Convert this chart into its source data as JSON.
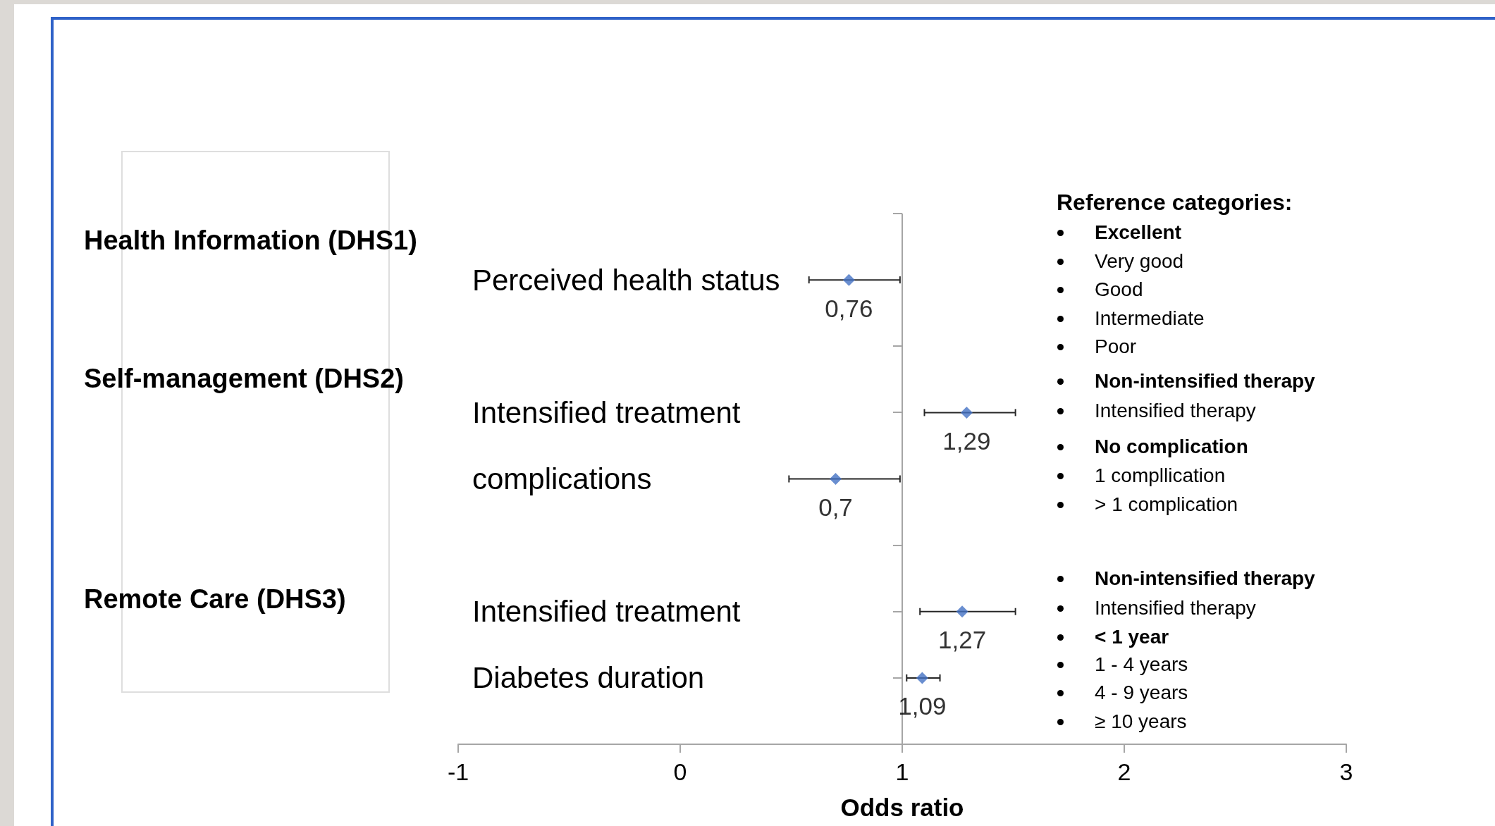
{
  "chart_data": {
    "type": "scatter",
    "orientation": "horizontal",
    "categories": [
      null,
      "Perceived health status",
      null,
      "Intensified treatment",
      "complications",
      null,
      "Intensified treatment",
      "Diabetes duration",
      null
    ],
    "values": [
      null,
      0.76,
      null,
      1.29,
      0.7,
      null,
      1.27,
      1.09,
      null
    ],
    "errors": [
      null,
      [
        0.58,
        0.99
      ],
      null,
      [
        1.1,
        1.51
      ],
      [
        0.49,
        0.99
      ],
      null,
      [
        1.08,
        1.51
      ],
      [
        1.02,
        1.17
      ],
      null
    ],
    "value_labels": [
      null,
      "0,76",
      null,
      "1,29",
      "0,7",
      null,
      "1,27",
      "1,09",
      null
    ],
    "color": "#4472c4",
    "marker": "diamond",
    "xlim": [
      -1,
      3
    ],
    "xticks": [
      -1,
      0,
      1,
      2,
      3
    ],
    "xlabel": "Odds ratio",
    "grid": false,
    "ref_lines": [
      {
        "axis": "x",
        "value": 1
      }
    ],
    "annotations": [
      "Health Information (DHS1)",
      "Self-management (DHS2)",
      "Remote Care (DHS3)",
      "Reference categories:",
      "Excellent",
      "Very good",
      "Good",
      "Intermediate",
      "Poor",
      "Non-intensified therapy",
      "Intensified therapy",
      "No complication",
      "1 compllication",
      "> 1 complication",
      "Non-intensified therapy",
      "Intensified therapy",
      "< 1 year",
      "1 - 4 years",
      "4 - 9 years",
      "≥ 10 years"
    ]
  }
}
